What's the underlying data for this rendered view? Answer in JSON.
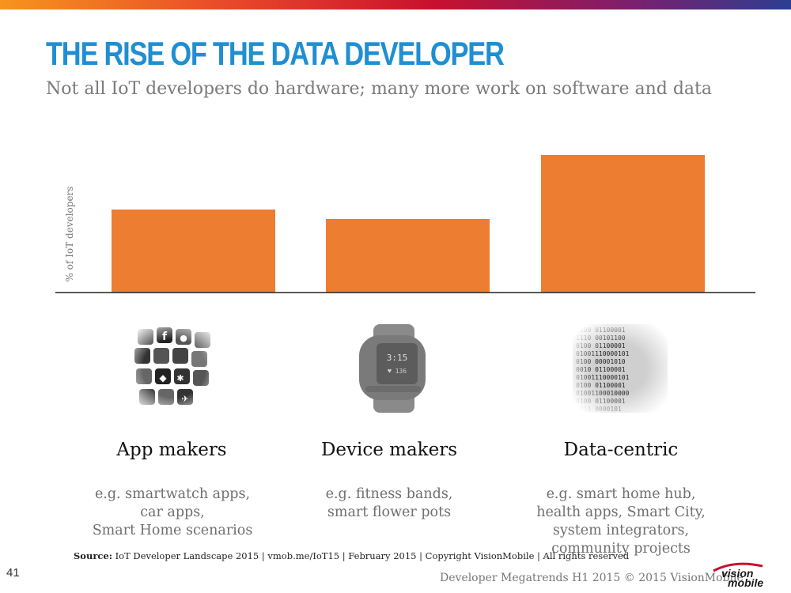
{
  "slide": {
    "title": "THE RISE OF THE DATA DEVELOPER",
    "subtitle": "Not all IoT developers do hardware; many more work on software and data"
  },
  "chart_data": {
    "type": "bar",
    "categories": [
      "App makers",
      "Device makers",
      "Data-centric"
    ],
    "values": [
      105,
      93,
      174
    ],
    "ylabel": "% of IoT developers",
    "ylim": [
      0,
      175
    ],
    "grid": false,
    "legend": "none",
    "bar_color": "#ed7d31"
  },
  "categories": [
    {
      "label": "App makers",
      "description": "e.g. smartwatch apps,\ncar apps,\nSmart Home scenarios",
      "image": "app-icons-image"
    },
    {
      "label": "Device makers",
      "description": "e.g. fitness bands,\nsmart flower pots",
      "image": "smartwatch-image"
    },
    {
      "label": "Data-centric",
      "description": "e.g. smart home hub,\nhealth apps, Smart City,\nsystem integrators,\ncommunity projects",
      "image": "binary-data-image"
    }
  ],
  "source": {
    "label": "Source:",
    "text": " IoT Developer Landscape 2015  |  vmob.me/IoT15  |  February 2015  |  Copyright VisionMobile  |  All rights reserved"
  },
  "footer": {
    "page_number": "41",
    "text": "Developer Megatrends H1 2015 © 2015 VisionMobile",
    "logo": "visionmobile-logo"
  }
}
